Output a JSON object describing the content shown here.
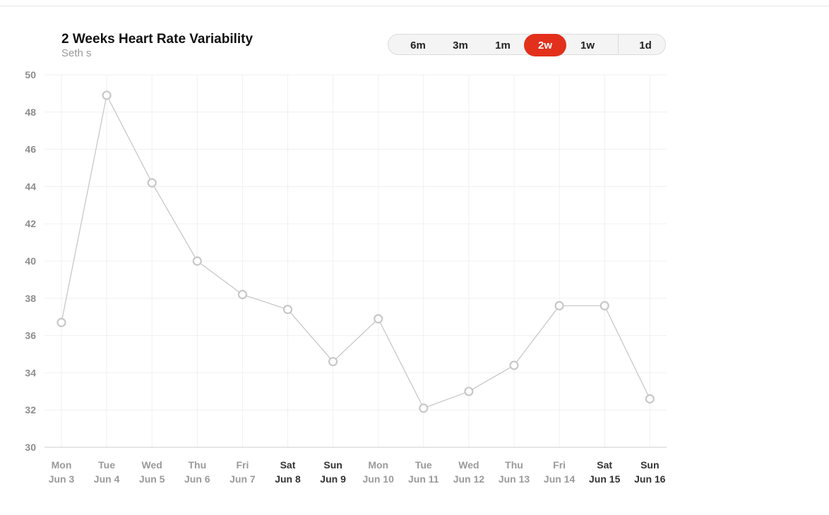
{
  "header": {
    "title": "2 Weeks Heart Rate Variability",
    "subtitle": "Seth s"
  },
  "range_toggle": {
    "options": [
      "6m",
      "3m",
      "1m",
      "2w",
      "1w",
      "1d"
    ],
    "selected": "2w"
  },
  "colors": {
    "accent": "#e2301c",
    "line": "#c8c8c8",
    "grid": "#f0f0f0",
    "axis": "#cccccc"
  },
  "chart_data": {
    "type": "line",
    "title": "2 Weeks Heart Rate Variability",
    "subtitle": "Seth s",
    "xlabel": "",
    "ylabel": "",
    "ylim": [
      30,
      50
    ],
    "yticks": [
      30,
      32,
      34,
      36,
      38,
      40,
      42,
      44,
      46,
      48,
      50
    ],
    "grid": true,
    "categories": [
      {
        "day": "Mon",
        "date": "Jun 3",
        "weekend": false
      },
      {
        "day": "Tue",
        "date": "Jun 4",
        "weekend": false
      },
      {
        "day": "Wed",
        "date": "Jun 5",
        "weekend": false
      },
      {
        "day": "Thu",
        "date": "Jun 6",
        "weekend": false
      },
      {
        "day": "Fri",
        "date": "Jun 7",
        "weekend": false
      },
      {
        "day": "Sat",
        "date": "Jun 8",
        "weekend": true
      },
      {
        "day": "Sun",
        "date": "Jun 9",
        "weekend": true
      },
      {
        "day": "Mon",
        "date": "Jun 10",
        "weekend": false
      },
      {
        "day": "Tue",
        "date": "Jun 11",
        "weekend": false
      },
      {
        "day": "Wed",
        "date": "Jun 12",
        "weekend": false
      },
      {
        "day": "Thu",
        "date": "Jun 13",
        "weekend": false
      },
      {
        "day": "Fri",
        "date": "Jun 14",
        "weekend": false
      },
      {
        "day": "Sat",
        "date": "Jun 15",
        "weekend": true
      },
      {
        "day": "Sun",
        "date": "Jun 16",
        "weekend": true
      }
    ],
    "values": [
      36.7,
      48.9,
      44.2,
      40.0,
      38.2,
      37.4,
      34.6,
      36.9,
      32.1,
      33.0,
      34.4,
      37.6,
      37.6,
      32.6
    ]
  }
}
